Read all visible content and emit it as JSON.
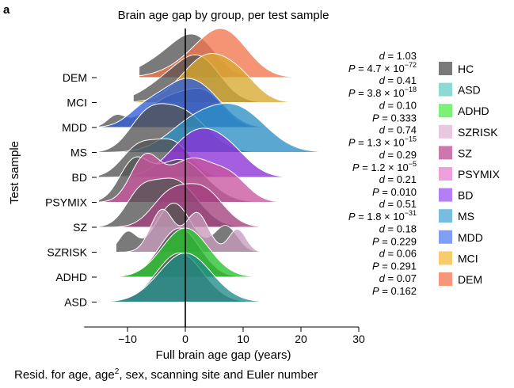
{
  "figure": {
    "panel_letter": "a",
    "footnote_prefix": "Resid. for age, age",
    "footnote_sup": "2",
    "footnote_suffix": ", sex, scanning site and Euler number"
  },
  "chart_data": {
    "type": "ridgeline",
    "title": "Brain age gap by group, per test sample",
    "xlabel": "Full brain age gap (years)",
    "ylabel": "Test sample",
    "xlim": [
      -17,
      30
    ],
    "xticks": [
      -10,
      0,
      10,
      20,
      30
    ],
    "reference_line": 0,
    "grid": false,
    "legend_position": "right",
    "rows": [
      {
        "name": "DEM",
        "ref": "HC",
        "d": "1.03",
        "p_mant": "4.7",
        "p_exp": "−72",
        "hc_peaks": [
          [
            -3,
            4.5,
            0.45
          ],
          [
            2,
            3.5,
            0.75
          ]
        ],
        "case_peaks": [
          [
            3,
            5.0,
            0.45
          ],
          [
            7,
            4.0,
            0.8
          ]
        ],
        "case_range": [
          -8,
          20
        ]
      },
      {
        "name": "MCI",
        "ref": "HC",
        "d": "0.41",
        "p_mant": "3.8",
        "p_exp": "−18",
        "hc_peaks": [
          [
            -2,
            4.5,
            0.5
          ],
          [
            3,
            3.5,
            0.65
          ]
        ],
        "case_peaks": [
          [
            4,
            4.5,
            0.95
          ],
          [
            10,
            3.0,
            0.25
          ]
        ],
        "case_range": [
          -9,
          22
        ]
      },
      {
        "name": "MDD",
        "ref": "HC",
        "d": "0.10",
        "p": "0.333",
        "hc_peaks": [
          [
            -12,
            1.5,
            0.2
          ],
          [
            -2,
            4.5,
            0.6
          ],
          [
            4,
            3.0,
            0.45
          ]
        ],
        "case_peaks": [
          [
            -7,
            3.0,
            0.35
          ],
          [
            -1,
            3.5,
            0.7
          ],
          [
            4,
            3.5,
            0.5
          ]
        ],
        "case_range": [
          -15,
          23
        ]
      },
      {
        "name": "MS",
        "ref": "HC",
        "d": "0.74",
        "p_mant": "1.3",
        "p_exp": "−15",
        "hc_peaks": [
          [
            -7,
            3.0,
            0.5
          ],
          [
            -1,
            4.5,
            0.85
          ]
        ],
        "case_peaks": [
          [
            1,
            4.5,
            0.5
          ],
          [
            9,
            5.0,
            0.85
          ]
        ],
        "case_range": [
          -15,
          25
        ]
      },
      {
        "name": "BD",
        "ref": "HC",
        "d": "0.29",
        "p_mant": "1.2",
        "p_exp": "−5",
        "hc_peaks": [
          [
            -8,
            3.0,
            0.65
          ],
          [
            -2,
            3.0,
            0.7
          ]
        ],
        "case_peaks": [
          [
            2,
            4.5,
            0.95
          ],
          [
            8,
            3.5,
            0.35
          ]
        ],
        "case_range": [
          -15,
          23
        ]
      },
      {
        "name": "PSYMIX",
        "ref": "HC",
        "d": "0.21",
        "p": "0.010",
        "hc_peaks": [
          [
            -9,
            2.5,
            0.5
          ],
          [
            -1,
            4.5,
            0.6
          ]
        ],
        "case_peaks": [
          [
            -7,
            2.5,
            0.6
          ],
          [
            1,
            4.0,
            0.6
          ],
          [
            8,
            3.0,
            0.3
          ]
        ],
        "case_range": [
          -15,
          24
        ]
      },
      {
        "name": "SZ",
        "ref": "HC",
        "d": "0.51",
        "p_mant": "1.8",
        "p_exp": "−31",
        "hc_peaks": [
          [
            -8,
            2.5,
            0.4
          ],
          [
            -2,
            4.0,
            0.75
          ]
        ],
        "case_peaks": [
          [
            -3,
            3.0,
            0.45
          ],
          [
            3,
            3.5,
            0.6
          ]
        ],
        "case_range": [
          -15,
          23
        ]
      },
      {
        "name": "SZRISK",
        "ref": "HC",
        "d": "0.18",
        "p": "0.229",
        "hc_peaks": [
          [
            -10,
            1.5,
            0.3
          ],
          [
            -2,
            3.0,
            0.75
          ],
          [
            7,
            2.0,
            0.4
          ]
        ],
        "case_peaks": [
          [
            -4,
            2.0,
            0.65
          ],
          [
            2,
            2.0,
            0.6
          ],
          [
            9,
            1.5,
            0.35
          ]
        ],
        "case_range": [
          -12,
          18
        ]
      },
      {
        "name": "ADHD",
        "ref": "HC",
        "d": "0.06",
        "p": "0.291",
        "hc_peaks": [
          [
            -1,
            3.5,
            1.0
          ]
        ],
        "case_peaks": [
          [
            0,
            4.0,
            1.0
          ]
        ],
        "case_range": [
          -12,
          22
        ]
      },
      {
        "name": "ASD",
        "ref": "HC",
        "d": "0.07",
        "p": "0.162",
        "hc_peaks": [
          [
            -1,
            4.0,
            1.0
          ]
        ],
        "case_peaks": [
          [
            0,
            4.5,
            1.0
          ]
        ],
        "case_range": [
          -15,
          25
        ]
      }
    ],
    "legend": [
      {
        "label": "HC",
        "color": "#7a7a7a"
      },
      {
        "label": "ASD",
        "color": "#8ed9d4"
      },
      {
        "label": "ADHD",
        "color": "#7ef07a"
      },
      {
        "label": "SZRISK",
        "color": "#e7c8df"
      },
      {
        "label": "SZ",
        "color": "#cc78ad"
      },
      {
        "label": "PSYMIX",
        "color": "#ee9fdc"
      },
      {
        "label": "BD",
        "color": "#b37ff2"
      },
      {
        "label": "MS",
        "color": "#78bde0"
      },
      {
        "label": "MDD",
        "color": "#7f9ff5"
      },
      {
        "label": "MCI",
        "color": "#f7cd6c"
      },
      {
        "label": "DEM",
        "color": "#f7967a"
      }
    ],
    "colors": {
      "hc": "#555555",
      "hc_alpha": 0.78,
      "case_alpha": 0.78,
      "case_shades": {
        "ASD": "#1f8a87",
        "ADHD": "#25c22a",
        "SZRISK": "#c89bbd",
        "SZ": "#a33f7d",
        "PSYMIX": "#c9569f",
        "BD": "#8a31d6",
        "MS": "#2c8fc4",
        "MDD": "#2f5dd6",
        "MCI": "#d9a92e",
        "DEM": "#f2764e"
      }
    }
  }
}
